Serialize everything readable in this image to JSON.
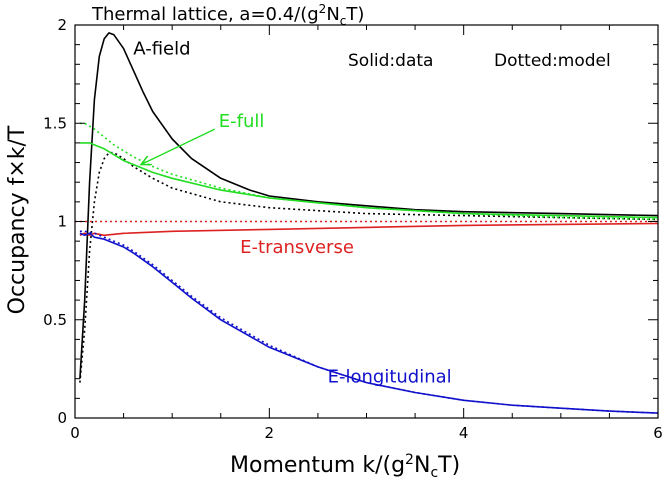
{
  "chart_data": {
    "type": "line",
    "title": "Thermal lattice, a=0.4/(g²N_cT)",
    "title_parts": {
      "prefix": "Thermal lattice, a=0.4/(g",
      "sup": "2",
      "mid": "N",
      "sub": "c",
      "suffix": "T)"
    },
    "xlabel": "Momentum k/(g²N_cT)",
    "xlabel_parts": {
      "prefix": "Momentum k/(g",
      "sup": "2",
      "mid": "N",
      "sub": "c",
      "suffix": "T)"
    },
    "ylabel": "Occupancy f×k/T",
    "xlim": [
      0,
      6
    ],
    "ylim": [
      0,
      2
    ],
    "x_ticks": [
      0,
      2,
      4,
      6
    ],
    "x_tick_labels": [
      "0",
      "2",
      "4",
      "6"
    ],
    "y_ticks": [
      0,
      0.5,
      1,
      1.5,
      2
    ],
    "y_tick_labels": [
      "0",
      "0.5",
      "1",
      "1.5",
      "2"
    ],
    "legend_notes": [
      "Solid:data",
      "Dotted:model"
    ],
    "colors": {
      "A-field": "#000000",
      "E-full": "#22dd22",
      "E-transverse": "#dd2222",
      "E-longitudinal": "#1111cc"
    },
    "series": [
      {
        "name": "A-field",
        "style": "solid",
        "color": "#000000",
        "x": [
          0.05,
          0.1,
          0.15,
          0.2,
          0.25,
          0.3,
          0.35,
          0.4,
          0.5,
          0.6,
          0.7,
          0.8,
          1.0,
          1.2,
          1.5,
          1.8,
          2.0,
          2.5,
          3.0,
          3.5,
          4.0,
          5.0,
          6.0
        ],
        "y": [
          0.2,
          0.6,
          1.2,
          1.62,
          1.84,
          1.93,
          1.96,
          1.95,
          1.88,
          1.77,
          1.66,
          1.56,
          1.42,
          1.32,
          1.22,
          1.16,
          1.13,
          1.1,
          1.08,
          1.06,
          1.05,
          1.04,
          1.03
        ]
      },
      {
        "name": "A-field model",
        "style": "dotted",
        "color": "#000000",
        "x": [
          0.05,
          0.1,
          0.15,
          0.2,
          0.25,
          0.3,
          0.35,
          0.4,
          0.5,
          0.6,
          0.8,
          1.0,
          1.5,
          2.0,
          3.0,
          4.0,
          5.0,
          6.0
        ],
        "y": [
          0.18,
          0.45,
          0.85,
          1.1,
          1.25,
          1.32,
          1.35,
          1.35,
          1.32,
          1.28,
          1.22,
          1.17,
          1.1,
          1.07,
          1.04,
          1.03,
          1.02,
          1.01
        ]
      },
      {
        "name": "E-full",
        "style": "solid",
        "color": "#22dd22",
        "x": [
          0.05,
          0.1,
          0.15,
          0.2,
          0.3,
          0.4,
          0.5,
          0.6,
          0.8,
          1.0,
          1.5,
          2.0,
          3.0,
          4.0,
          5.0,
          6.0
        ],
        "y": [
          1.4,
          1.4,
          1.4,
          1.39,
          1.37,
          1.34,
          1.31,
          1.29,
          1.25,
          1.22,
          1.16,
          1.12,
          1.07,
          1.04,
          1.03,
          1.02
        ]
      },
      {
        "name": "E-full model",
        "style": "dotted",
        "color": "#22dd22",
        "x": [
          0.05,
          0.1,
          0.2,
          0.3,
          0.4,
          0.5,
          0.6,
          0.8,
          1.0,
          1.5,
          2.0,
          3.0,
          4.0,
          5.0,
          6.0
        ],
        "y": [
          1.5,
          1.5,
          1.47,
          1.43,
          1.39,
          1.36,
          1.33,
          1.28,
          1.24,
          1.17,
          1.12,
          1.07,
          1.04,
          1.02,
          1.01
        ]
      },
      {
        "name": "E-transverse",
        "style": "solid",
        "color": "#dd2222",
        "x": [
          0.05,
          0.1,
          0.15,
          0.2,
          0.3,
          0.5,
          1.0,
          2.0,
          3.0,
          4.0,
          5.0,
          6.0
        ],
        "y": [
          0.93,
          0.94,
          0.93,
          0.94,
          0.93,
          0.94,
          0.95,
          0.96,
          0.97,
          0.98,
          0.985,
          0.99
        ]
      },
      {
        "name": "Classical (f×k/T=1)",
        "style": "dotted",
        "color": "#dd2222",
        "x": [
          0,
          6
        ],
        "y": [
          1,
          1
        ]
      },
      {
        "name": "E-longitudinal",
        "style": "solid",
        "color": "#1111cc",
        "x": [
          0.05,
          0.1,
          0.15,
          0.2,
          0.3,
          0.4,
          0.5,
          0.6,
          0.8,
          1.0,
          1.2,
          1.5,
          2.0,
          2.5,
          3.0,
          3.5,
          4.0,
          4.5,
          5.0,
          5.5,
          6.0
        ],
        "y": [
          0.94,
          0.93,
          0.94,
          0.92,
          0.91,
          0.89,
          0.87,
          0.84,
          0.77,
          0.69,
          0.61,
          0.5,
          0.36,
          0.26,
          0.18,
          0.13,
          0.09,
          0.065,
          0.05,
          0.035,
          0.025
        ]
      },
      {
        "name": "E-longitudinal model",
        "style": "dotted",
        "color": "#1111cc",
        "x": [
          0.05,
          0.1,
          0.2,
          0.3,
          0.4,
          0.5,
          0.6,
          0.8,
          1.0,
          1.2,
          1.5,
          2.0,
          2.5,
          3.0,
          3.5,
          4.0,
          4.5,
          5.0,
          5.5,
          6.0
        ],
        "y": [
          0.95,
          0.95,
          0.94,
          0.92,
          0.9,
          0.88,
          0.85,
          0.78,
          0.7,
          0.62,
          0.51,
          0.37,
          0.26,
          0.18,
          0.13,
          0.09,
          0.065,
          0.05,
          0.035,
          0.025
        ]
      }
    ],
    "annotations": [
      {
        "text": "A-field",
        "color": "#000000",
        "at": [
          0.6,
          1.85
        ]
      },
      {
        "text": "E-full",
        "color": "#22dd22",
        "at": [
          1.48,
          1.48
        ],
        "arrow_to": [
          0.68,
          1.29
        ]
      },
      {
        "text": "E-transverse",
        "color": "#dd2222",
        "at": [
          1.7,
          0.84
        ]
      },
      {
        "text": "E-longitudinal",
        "color": "#1111cc",
        "at": [
          2.6,
          0.18
        ]
      }
    ],
    "grid": false
  }
}
